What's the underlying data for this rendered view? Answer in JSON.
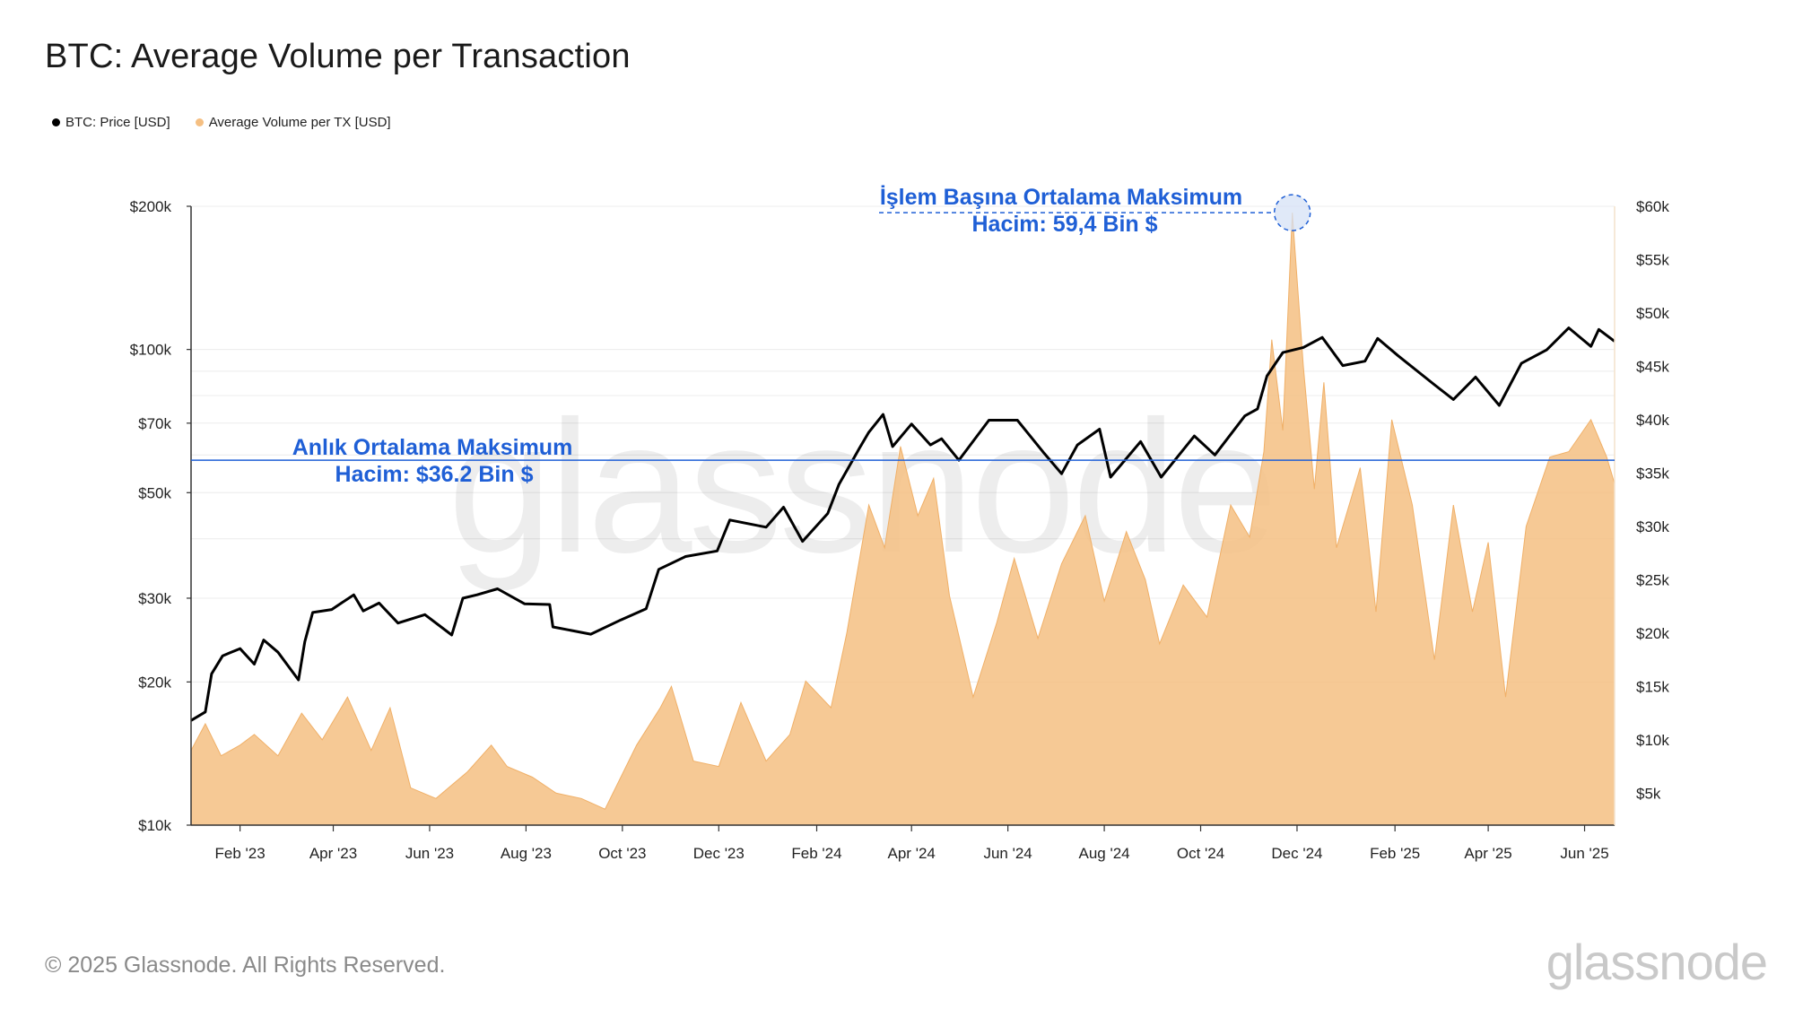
{
  "header": {
    "title": "BTC: Average Volume per Transaction"
  },
  "legend": [
    {
      "label": "BTC: Price [USD]",
      "color": "#000000"
    },
    {
      "label": "Average Volume per TX [USD]",
      "color": "#f5bf82"
    }
  ],
  "watermark": "glassnode",
  "footer": {
    "copyright": "© 2025 Glassnode. All Rights Reserved.",
    "logo": "glassnode"
  },
  "annotations": {
    "peak_label_line1": "İşlem Başına Ortalama Maksimum",
    "peak_label_line2": "Hacim: 59,4 Bin $",
    "level_label_line1": "Anlık Ortalama Maksimum",
    "level_label_line2": "Hacim: $36.2 Bin $",
    "level_value": 36200,
    "peak_value": 59400,
    "peak_date": "2024-11-28",
    "color": "#1f5fd6"
  },
  "chart_data": {
    "type": "line",
    "x_ticks": [
      "Feb '23",
      "Apr '23",
      "Jun '23",
      "Aug '23",
      "Oct '23",
      "Dec '23",
      "Feb '24",
      "Apr '24",
      "Jun '24",
      "Aug '24",
      "Oct '24",
      "Dec '24",
      "Feb '25",
      "Apr '25",
      "Jun '25"
    ],
    "x_tick_dates": [
      "2023-02-01",
      "2023-04-01",
      "2023-06-01",
      "2023-08-01",
      "2023-10-01",
      "2023-12-01",
      "2024-02-01",
      "2024-04-01",
      "2024-06-01",
      "2024-08-01",
      "2024-10-01",
      "2024-12-01",
      "2025-02-01",
      "2025-04-01",
      "2025-06-01"
    ],
    "x_range": [
      "2023-01-01",
      "2025-06-20"
    ],
    "y_left": {
      "scale": "log",
      "range": [
        10000,
        200000
      ],
      "ticks": [
        10000,
        20000,
        30000,
        50000,
        70000,
        100000,
        200000
      ],
      "tick_labels": [
        "$10k",
        "$20k",
        "$30k",
        "$50k",
        "$70k",
        "$100k",
        "$200k"
      ]
    },
    "y_right": {
      "scale": "linear",
      "range": [
        2000,
        60000
      ],
      "ticks": [
        5000,
        10000,
        15000,
        20000,
        25000,
        30000,
        35000,
        40000,
        45000,
        50000,
        55000,
        60000
      ],
      "tick_labels": [
        "$5k",
        "$10k",
        "$15k",
        "$20k",
        "$25k",
        "$30k",
        "$35k",
        "$40k",
        "$45k",
        "$50k",
        "$55k",
        "$60k"
      ]
    },
    "grid": true,
    "legend_position": "top-left",
    "series": [
      {
        "name": "BTC: Price [USD]",
        "axis": "left",
        "color": "#000000",
        "points": [
          [
            "2023-01-01",
            16600
          ],
          [
            "2023-01-10",
            17300
          ],
          [
            "2023-01-14",
            20800
          ],
          [
            "2023-01-21",
            22700
          ],
          [
            "2023-02-01",
            23500
          ],
          [
            "2023-02-10",
            21800
          ],
          [
            "2023-02-16",
            24500
          ],
          [
            "2023-02-25",
            23100
          ],
          [
            "2023-03-10",
            20200
          ],
          [
            "2023-03-14",
            24300
          ],
          [
            "2023-03-19",
            28000
          ],
          [
            "2023-03-31",
            28400
          ],
          [
            "2023-04-14",
            30500
          ],
          [
            "2023-04-20",
            28200
          ],
          [
            "2023-04-30",
            29300
          ],
          [
            "2023-05-12",
            26600
          ],
          [
            "2023-05-29",
            27700
          ],
          [
            "2023-06-15",
            25100
          ],
          [
            "2023-06-22",
            30000
          ],
          [
            "2023-07-01",
            30500
          ],
          [
            "2023-07-14",
            31400
          ],
          [
            "2023-07-31",
            29200
          ],
          [
            "2023-08-16",
            29100
          ],
          [
            "2023-08-18",
            26100
          ],
          [
            "2023-09-11",
            25200
          ],
          [
            "2023-09-30",
            27000
          ],
          [
            "2023-10-16",
            28500
          ],
          [
            "2023-10-24",
            34500
          ],
          [
            "2023-11-10",
            36700
          ],
          [
            "2023-11-30",
            37700
          ],
          [
            "2023-12-08",
            43800
          ],
          [
            "2023-12-31",
            42300
          ],
          [
            "2024-01-11",
            46600
          ],
          [
            "2024-01-23",
            39500
          ],
          [
            "2024-02-08",
            45200
          ],
          [
            "2024-02-15",
            52000
          ],
          [
            "2024-02-28",
            62000
          ],
          [
            "2024-03-05",
            67000
          ],
          [
            "2024-03-14",
            73000
          ],
          [
            "2024-03-20",
            62500
          ],
          [
            "2024-04-01",
            69700
          ],
          [
            "2024-04-13",
            63000
          ],
          [
            "2024-04-20",
            64900
          ],
          [
            "2024-05-01",
            58500
          ],
          [
            "2024-05-20",
            71000
          ],
          [
            "2024-06-07",
            71000
          ],
          [
            "2024-06-24",
            60500
          ],
          [
            "2024-07-05",
            54800
          ],
          [
            "2024-07-15",
            63000
          ],
          [
            "2024-07-29",
            68000
          ],
          [
            "2024-08-05",
            53900
          ],
          [
            "2024-08-24",
            64000
          ],
          [
            "2024-09-06",
            53900
          ],
          [
            "2024-09-27",
            65800
          ],
          [
            "2024-10-10",
            60000
          ],
          [
            "2024-10-29",
            72500
          ],
          [
            "2024-11-06",
            75000
          ],
          [
            "2024-11-12",
            88000
          ],
          [
            "2024-11-22",
            98500
          ],
          [
            "2024-12-05",
            101000
          ],
          [
            "2024-12-17",
            106000
          ],
          [
            "2024-12-30",
            92500
          ],
          [
            "2025-01-13",
            94500
          ],
          [
            "2025-01-21",
            105500
          ],
          [
            "2025-02-03",
            97000
          ],
          [
            "2025-02-26",
            84300
          ],
          [
            "2025-03-10",
            78500
          ],
          [
            "2025-03-24",
            87500
          ],
          [
            "2025-04-08",
            76300
          ],
          [
            "2025-04-22",
            93500
          ],
          [
            "2025-05-08",
            99800
          ],
          [
            "2025-05-22",
            111000
          ],
          [
            "2025-06-05",
            101500
          ],
          [
            "2025-06-10",
            110200
          ],
          [
            "2025-06-20",
            104000
          ]
        ]
      },
      {
        "name": "Average Volume per TX [USD]",
        "axis": "right",
        "color": "#f5bf82",
        "points": [
          [
            "2023-01-01",
            9000
          ],
          [
            "2023-01-10",
            11500
          ],
          [
            "2023-01-20",
            8500
          ],
          [
            "2023-02-01",
            9500
          ],
          [
            "2023-02-10",
            10500
          ],
          [
            "2023-02-25",
            8500
          ],
          [
            "2023-03-12",
            12500
          ],
          [
            "2023-03-25",
            10000
          ],
          [
            "2023-04-10",
            14000
          ],
          [
            "2023-04-25",
            9000
          ],
          [
            "2023-05-07",
            13000
          ],
          [
            "2023-05-20",
            5500
          ],
          [
            "2023-06-05",
            4500
          ],
          [
            "2023-06-25",
            7000
          ],
          [
            "2023-07-10",
            9500
          ],
          [
            "2023-07-20",
            7500
          ],
          [
            "2023-08-05",
            6500
          ],
          [
            "2023-08-20",
            5000
          ],
          [
            "2023-09-05",
            4500
          ],
          [
            "2023-09-20",
            3500
          ],
          [
            "2023-10-10",
            9500
          ],
          [
            "2023-10-25",
            13000
          ],
          [
            "2023-11-01",
            15000
          ],
          [
            "2023-11-15",
            8000
          ],
          [
            "2023-12-01",
            7500
          ],
          [
            "2023-12-15",
            13500
          ],
          [
            "2023-12-31",
            8000
          ],
          [
            "2024-01-15",
            10500
          ],
          [
            "2024-01-25",
            15500
          ],
          [
            "2024-02-10",
            13000
          ],
          [
            "2024-02-20",
            20000
          ],
          [
            "2024-03-05",
            32000
          ],
          [
            "2024-03-15",
            28000
          ],
          [
            "2024-03-25",
            37500
          ],
          [
            "2024-04-05",
            31000
          ],
          [
            "2024-04-15",
            34500
          ],
          [
            "2024-04-25",
            23500
          ],
          [
            "2024-05-10",
            14000
          ],
          [
            "2024-05-25",
            21000
          ],
          [
            "2024-06-05",
            27000
          ],
          [
            "2024-06-20",
            19500
          ],
          [
            "2024-07-05",
            26500
          ],
          [
            "2024-07-20",
            31000
          ],
          [
            "2024-08-01",
            23000
          ],
          [
            "2024-08-15",
            29500
          ],
          [
            "2024-08-27",
            25000
          ],
          [
            "2024-09-05",
            19000
          ],
          [
            "2024-09-20",
            24500
          ],
          [
            "2024-10-05",
            21500
          ],
          [
            "2024-10-20",
            32000
          ],
          [
            "2024-11-01",
            29000
          ],
          [
            "2024-11-10",
            37000
          ],
          [
            "2024-11-15",
            47500
          ],
          [
            "2024-11-22",
            39000
          ],
          [
            "2024-11-28",
            59400
          ],
          [
            "2024-12-05",
            45000
          ],
          [
            "2024-12-12",
            33500
          ],
          [
            "2024-12-18",
            43500
          ],
          [
            "2024-12-26",
            28000
          ],
          [
            "2025-01-10",
            35500
          ],
          [
            "2025-01-20",
            22000
          ],
          [
            "2025-01-30",
            40000
          ],
          [
            "2025-02-12",
            32000
          ],
          [
            "2025-02-26",
            17500
          ],
          [
            "2025-03-10",
            32000
          ],
          [
            "2025-03-22",
            22000
          ],
          [
            "2025-04-01",
            28500
          ],
          [
            "2025-04-12",
            14000
          ],
          [
            "2025-04-25",
            30000
          ],
          [
            "2025-05-10",
            36500
          ],
          [
            "2025-05-22",
            37000
          ],
          [
            "2025-06-05",
            40000
          ],
          [
            "2025-06-15",
            36500
          ],
          [
            "2025-06-20",
            34000
          ]
        ]
      }
    ]
  }
}
